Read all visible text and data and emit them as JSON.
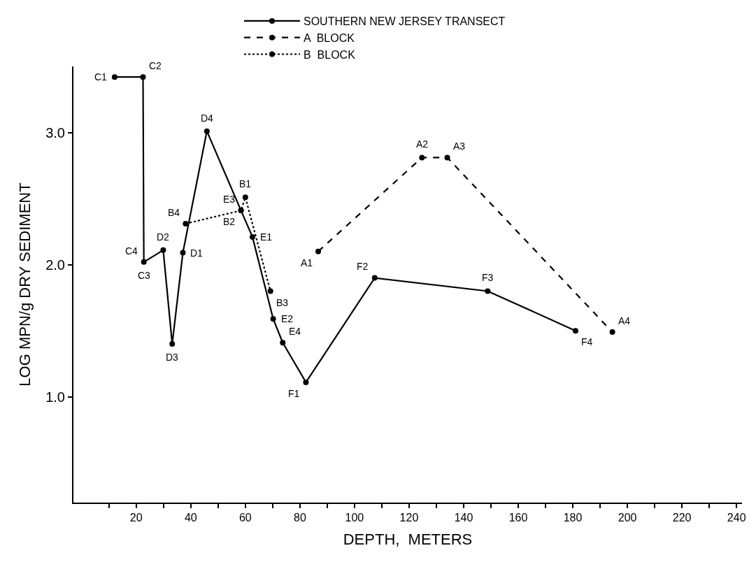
{
  "chart_data": {
    "type": "line",
    "xlabel": "DEPTH,  METERS",
    "ylabel": "LOG MPN/g DRY SEDIMENT",
    "series": [
      {
        "name": "SOUTHERN NEW JERSEY TRANSECT",
        "color": "#000000",
        "line_style": "solid",
        "x": [
          12.1,
          22.5,
          22.8,
          29.9,
          33.2,
          37.1,
          45.9,
          58.4,
          62.6,
          70.2,
          73.7,
          82.2,
          107.4,
          148.8,
          181
        ],
        "values": [
          3.42,
          3.42,
          2.02,
          2.11,
          1.4,
          2.09,
          3.01,
          2.41,
          2.21,
          1.59,
          1.41,
          1.11,
          1.9,
          1.8,
          1.5
        ]
      },
      {
        "name": "A  BLOCK",
        "color": "#000000",
        "line_style": "dashed",
        "x": [
          86.7,
          124.7,
          134,
          194.5
        ],
        "values": [
          2.1,
          2.81,
          2.81,
          1.49
        ]
      },
      {
        "name": "B  BLOCK",
        "color": "#000000",
        "line_style": "dotted",
        "x": [
          38.1,
          58.4,
          60,
          69.2
        ],
        "values": [
          2.31,
          2.41,
          2.51,
          1.8
        ]
      }
    ],
    "annotations": [
      {
        "text": "C1",
        "x": 12.1,
        "y": 3.42
      },
      {
        "text": "C2",
        "x": 22.5,
        "y": 3.42
      },
      {
        "text": "C3",
        "x": 22.8,
        "y": 2.02
      },
      {
        "text": "C4",
        "x": 22.8,
        "y": 2.02
      },
      {
        "text": "D2",
        "x": 29.9,
        "y": 2.11
      },
      {
        "text": "D3",
        "x": 33.2,
        "y": 1.4
      },
      {
        "text": "D1",
        "x": 37.1,
        "y": 2.09
      },
      {
        "text": "D4",
        "x": 45.9,
        "y": 3.01
      },
      {
        "text": "B2",
        "x": 58.4,
        "y": 2.41
      },
      {
        "text": "E3",
        "x": 58.4,
        "y": 2.41
      },
      {
        "text": "E1",
        "x": 62.6,
        "y": 2.21
      },
      {
        "text": "E2",
        "x": 70.2,
        "y": 1.59
      },
      {
        "text": "E4",
        "x": 73.7,
        "y": 1.41
      },
      {
        "text": "F1",
        "x": 82.2,
        "y": 1.11
      },
      {
        "text": "F2",
        "x": 107.4,
        "y": 1.9
      },
      {
        "text": "F3",
        "x": 148.8,
        "y": 1.8
      },
      {
        "text": "F4",
        "x": 181,
        "y": 1.5
      },
      {
        "text": "A1",
        "x": 86.7,
        "y": 2.1
      },
      {
        "text": "A2",
        "x": 124.7,
        "y": 2.81
      },
      {
        "text": "A3",
        "x": 134,
        "y": 2.81
      },
      {
        "text": "A4",
        "x": 194.5,
        "y": 1.49
      },
      {
        "text": "B4",
        "x": 38.1,
        "y": 2.31
      },
      {
        "text": "B1",
        "x": 60,
        "y": 2.51
      },
      {
        "text": "B3",
        "x": 69.2,
        "y": 1.8
      }
    ],
    "xlim": [
      -3,
      242
    ],
    "xticks": [
      {
        "value": 10,
        "label": null
      },
      20,
      {
        "value": 30,
        "label": null
      },
      40,
      {
        "value": 50,
        "label": null
      },
      60,
      {
        "value": 70,
        "label": null
      },
      80,
      {
        "value": 90,
        "label": null
      },
      100,
      {
        "value": 110,
        "label": null
      },
      120,
      {
        "value": 130,
        "label": null
      },
      140,
      {
        "value": 150,
        "label": null
      },
      160,
      {
        "value": 170,
        "label": null
      },
      180,
      {
        "value": 190,
        "label": null
      },
      200,
      {
        "value": 210,
        "label": null
      },
      220,
      {
        "value": 230,
        "label": null
      },
      240
    ],
    "ylim": [
      0.2,
      3.5
    ],
    "yticks": [
      {
        "value": 1,
        "label": "1.0"
      },
      {
        "value": 2,
        "label": "2.0"
      },
      {
        "value": 3,
        "label": "3.0"
      }
    ],
    "legend": "top",
    "marker": "circle"
  }
}
